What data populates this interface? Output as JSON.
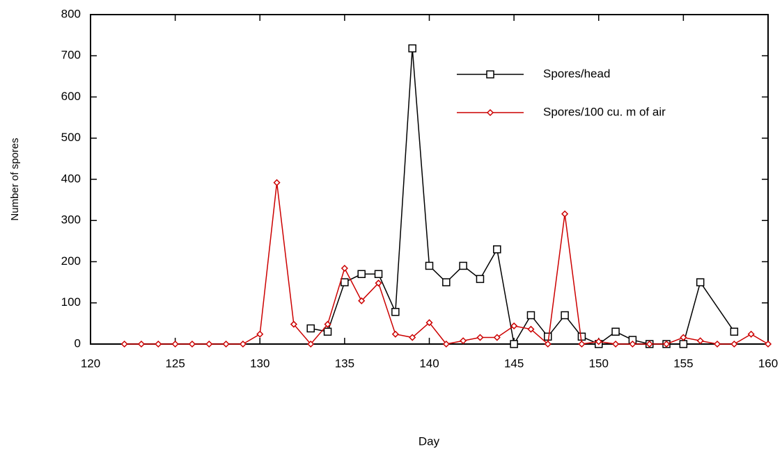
{
  "chart_data": {
    "type": "line",
    "x_label": "Day",
    "y_label": "Number of spores",
    "xlim": [
      120,
      160
    ],
    "xticks": [
      120,
      125,
      130,
      135,
      140,
      145,
      150,
      155,
      160
    ],
    "ylim": [
      0,
      800
    ],
    "yticks": [
      0,
      100,
      200,
      300,
      400,
      500,
      600,
      700,
      800
    ],
    "legend": "upper right",
    "series": [
      {
        "name": "Spores/head",
        "color": "#000000",
        "marker": "square",
        "x": [
          133,
          134,
          135,
          136,
          137,
          138,
          139,
          140,
          141,
          142,
          143,
          144,
          145,
          146,
          147,
          148,
          149,
          150,
          151,
          152,
          153,
          154,
          155,
          156,
          158
        ],
        "values": [
          38,
          30,
          150,
          170,
          170,
          78,
          718,
          190,
          150,
          190,
          158,
          230,
          0,
          70,
          18,
          70,
          18,
          0,
          30,
          10,
          0,
          0,
          0,
          150,
          30
        ]
      },
      {
        "name": "Spores/100 cu. m  of air",
        "color": "#cc0000",
        "marker": "diamond",
        "x": [
          122,
          123,
          124,
          125,
          126,
          127,
          128,
          129,
          130,
          131,
          132,
          133,
          134,
          135,
          136,
          137,
          138,
          139,
          140,
          141,
          142,
          143,
          144,
          145,
          146,
          147,
          148,
          149,
          150,
          151,
          152,
          153,
          154,
          155,
          156,
          157,
          158,
          159,
          160
        ],
        "values": [
          0,
          0,
          0,
          0,
          0,
          0,
          0,
          0,
          24,
          392,
          48,
          0,
          48,
          184,
          105,
          148,
          24,
          16,
          52,
          0,
          8,
          16,
          16,
          44,
          36,
          0,
          316,
          0,
          6,
          0,
          0,
          0,
          0,
          16,
          8,
          0,
          0,
          24,
          0
        ]
      }
    ]
  }
}
